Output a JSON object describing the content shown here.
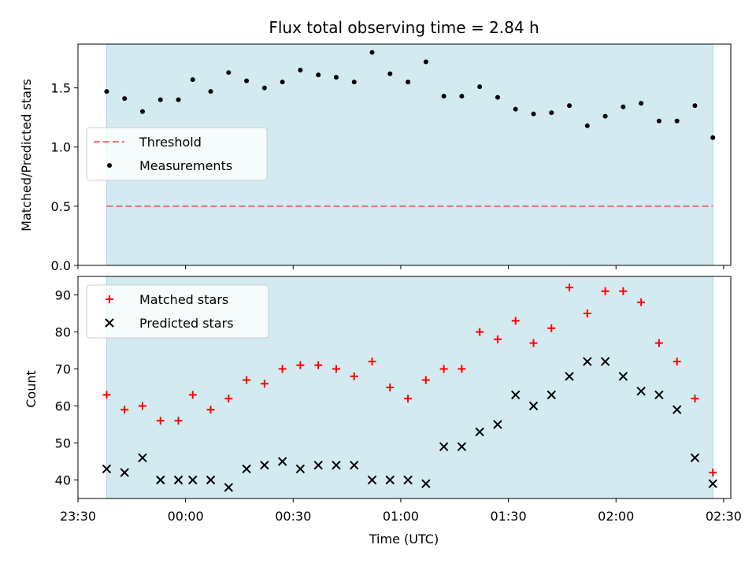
{
  "chart_data": [
    {
      "type": "scatter",
      "panel": "top",
      "title": "Flux total observing time = 2.84 h",
      "ylabel": "Matched/Predicted stars",
      "xlabel": "",
      "ylim": [
        0,
        1.87
      ],
      "yticks": [
        0.0,
        0.5,
        1.0,
        1.5
      ],
      "ytick_labels": [
        "0.0",
        "0.5",
        "1.0",
        "1.5"
      ],
      "legend": {
        "placement": "center-left",
        "entries": [
          "Threshold",
          "Measurements"
        ]
      },
      "shaded_interval": {
        "x_start": "23:38",
        "x_end": "02:27",
        "color": "#d3eaf0"
      },
      "threshold": {
        "name": "Threshold",
        "value": 0.5,
        "color": "#f07070",
        "style": "dashed"
      },
      "series": [
        {
          "name": "Measurements",
          "marker": "dot",
          "color": "#000000",
          "points": [
            [
              "23:38",
              1.47
            ],
            [
              "23:43",
              1.41
            ],
            [
              "23:48",
              1.3
            ],
            [
              "23:53",
              1.4
            ],
            [
              "23:58",
              1.4
            ],
            [
              "00:02",
              1.57
            ],
            [
              "00:07",
              1.47
            ],
            [
              "00:12",
              1.63
            ],
            [
              "00:17",
              1.56
            ],
            [
              "00:22",
              1.5
            ],
            [
              "00:27",
              1.55
            ],
            [
              "00:32",
              1.65
            ],
            [
              "00:37",
              1.61
            ],
            [
              "00:42",
              1.59
            ],
            [
              "00:47",
              1.55
            ],
            [
              "00:52",
              1.8
            ],
            [
              "00:57",
              1.62
            ],
            [
              "01:02",
              1.55
            ],
            [
              "01:07",
              1.72
            ],
            [
              "01:12",
              1.43
            ],
            [
              "01:17",
              1.43
            ],
            [
              "01:22",
              1.51
            ],
            [
              "01:27",
              1.42
            ],
            [
              "01:32",
              1.32
            ],
            [
              "01:37",
              1.28
            ],
            [
              "01:42",
              1.29
            ],
            [
              "01:47",
              1.35
            ],
            [
              "01:52",
              1.18
            ],
            [
              "01:57",
              1.26
            ],
            [
              "02:02",
              1.34
            ],
            [
              "02:07",
              1.37
            ],
            [
              "02:12",
              1.22
            ],
            [
              "02:17",
              1.22
            ],
            [
              "02:22",
              1.35
            ],
            [
              "02:27",
              1.08
            ]
          ]
        }
      ]
    },
    {
      "type": "scatter",
      "panel": "bottom",
      "title": "",
      "ylabel": "Count",
      "xlabel": "Time (UTC)",
      "ylim": [
        35,
        95
      ],
      "yticks": [
        40,
        50,
        60,
        70,
        80,
        90
      ],
      "ytick_labels": [
        "40",
        "50",
        "60",
        "70",
        "80",
        "90"
      ],
      "xlim": [
        "23:30",
        "02:32"
      ],
      "xticks": [
        "23:30",
        "00:00",
        "00:30",
        "01:00",
        "01:30",
        "02:00",
        "02:30"
      ],
      "legend": {
        "placement": "top-left",
        "entries": [
          "Matched stars",
          "Predicted stars"
        ]
      },
      "shaded_interval": {
        "x_start": "23:38",
        "x_end": "02:27",
        "color": "#d3eaf0"
      },
      "series": [
        {
          "name": "Matched stars",
          "marker": "plus",
          "color": "#ff0000",
          "points": [
            [
              "23:38",
              63
            ],
            [
              "23:43",
              59
            ],
            [
              "23:48",
              60
            ],
            [
              "23:53",
              56
            ],
            [
              "23:58",
              56
            ],
            [
              "00:02",
              63
            ],
            [
              "00:07",
              59
            ],
            [
              "00:12",
              62
            ],
            [
              "00:17",
              67
            ],
            [
              "00:22",
              66
            ],
            [
              "00:27",
              70
            ],
            [
              "00:32",
              71
            ],
            [
              "00:37",
              71
            ],
            [
              "00:42",
              70
            ],
            [
              "00:47",
              68
            ],
            [
              "00:52",
              72
            ],
            [
              "00:57",
              65
            ],
            [
              "01:02",
              62
            ],
            [
              "01:07",
              67
            ],
            [
              "01:12",
              70
            ],
            [
              "01:17",
              70
            ],
            [
              "01:22",
              80
            ],
            [
              "01:27",
              78
            ],
            [
              "01:32",
              83
            ],
            [
              "01:37",
              77
            ],
            [
              "01:42",
              81
            ],
            [
              "01:47",
              92
            ],
            [
              "01:52",
              85
            ],
            [
              "01:57",
              91
            ],
            [
              "02:02",
              91
            ],
            [
              "02:07",
              88
            ],
            [
              "02:12",
              77
            ],
            [
              "02:17",
              72
            ],
            [
              "02:22",
              62
            ],
            [
              "02:27",
              42
            ]
          ]
        },
        {
          "name": "Predicted stars",
          "marker": "x",
          "color": "#000000",
          "points": [
            [
              "23:38",
              43
            ],
            [
              "23:43",
              42
            ],
            [
              "23:48",
              46
            ],
            [
              "23:53",
              40
            ],
            [
              "23:58",
              40
            ],
            [
              "00:02",
              40
            ],
            [
              "00:07",
              40
            ],
            [
              "00:12",
              38
            ],
            [
              "00:17",
              43
            ],
            [
              "00:22",
              44
            ],
            [
              "00:27",
              45
            ],
            [
              "00:32",
              43
            ],
            [
              "00:37",
              44
            ],
            [
              "00:42",
              44
            ],
            [
              "00:47",
              44
            ],
            [
              "00:52",
              40
            ],
            [
              "00:57",
              40
            ],
            [
              "01:02",
              40
            ],
            [
              "01:07",
              39
            ],
            [
              "01:12",
              49
            ],
            [
              "01:17",
              49
            ],
            [
              "01:22",
              53
            ],
            [
              "01:27",
              55
            ],
            [
              "01:32",
              63
            ],
            [
              "01:37",
              60
            ],
            [
              "01:42",
              63
            ],
            [
              "01:47",
              68
            ],
            [
              "01:52",
              72
            ],
            [
              "01:57",
              72
            ],
            [
              "02:02",
              68
            ],
            [
              "02:07",
              64
            ],
            [
              "02:12",
              63
            ],
            [
              "02:17",
              59
            ],
            [
              "02:22",
              46
            ],
            [
              "02:27",
              39
            ]
          ]
        }
      ]
    }
  ]
}
